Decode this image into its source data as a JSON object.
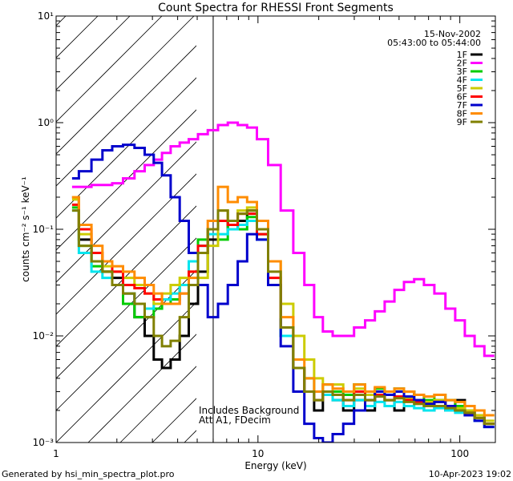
{
  "footer": {
    "left": "Generated by hsi_min_spectra_plot.pro",
    "right": "10-Apr-2023 19:02"
  },
  "chart_data": {
    "type": "line",
    "title": "Count Spectra for RHESSI Front Segments",
    "xlabel": "Energy (keV)",
    "ylabel": "counts cm⁻² s⁻¹ keV⁻¹",
    "x_scale": "log",
    "y_scale": "log",
    "xlim": [
      1,
      150
    ],
    "ylim": [
      0.001,
      10
    ],
    "x_ticks": [
      1,
      10,
      100
    ],
    "x_tick_labels": [
      "1",
      "10",
      "100"
    ],
    "y_ticks": [
      0.001,
      0.01,
      0.1,
      1,
      10
    ],
    "y_tick_labels": [
      "10⁻³",
      "10⁻²",
      "10⁻¹",
      "10⁰",
      "10¹"
    ],
    "date": "15-Nov-2002",
    "time_range": "05:43:00 to 05:44:00",
    "hatched_region_keV": [
      1,
      6
    ],
    "annotations": [
      "Includes Background",
      "Att A1, FDecim"
    ],
    "legend_position": "top-right",
    "series": [
      {
        "name": "1F",
        "color": "#000000",
        "x": [
          1.2,
          1.4,
          1.6,
          1.8,
          2.0,
          2.3,
          2.6,
          2.9,
          3.2,
          3.5,
          3.9,
          4.3,
          4.8,
          5.3,
          6.0,
          6.7,
          7.5,
          8.4,
          9.3,
          10.5,
          12,
          14,
          16,
          18,
          20,
          22,
          25,
          28,
          32,
          36,
          40,
          45,
          50,
          56,
          63,
          70,
          80,
          90,
          100,
          112,
          125,
          140
        ],
        "y": [
          0.2,
          0.08,
          0.05,
          0.04,
          0.035,
          0.025,
          0.015,
          0.01,
          0.006,
          0.005,
          0.006,
          0.01,
          0.02,
          0.04,
          0.08,
          0.12,
          0.1,
          0.12,
          0.15,
          0.1,
          0.03,
          0.01,
          0.005,
          0.003,
          0.002,
          0.003,
          0.0025,
          0.002,
          0.0025,
          0.002,
          0.003,
          0.0025,
          0.002,
          0.003,
          0.0025,
          0.002,
          0.0025,
          0.002,
          0.0025,
          0.002,
          0.0018,
          0.0015
        ]
      },
      {
        "name": "2F",
        "color": "#ff00ff",
        "x": [
          1.2,
          1.4,
          1.6,
          1.8,
          2.0,
          2.3,
          2.6,
          2.9,
          3.2,
          3.5,
          3.9,
          4.3,
          4.8,
          5.3,
          6.0,
          6.7,
          7.5,
          8.4,
          9.3,
          10.5,
          12,
          14,
          16,
          18,
          20,
          22,
          25,
          28,
          32,
          36,
          40,
          45,
          50,
          56,
          63,
          70,
          80,
          90,
          100,
          112,
          125,
          140
        ],
        "y": [
          0.25,
          0.25,
          0.26,
          0.26,
          0.27,
          0.3,
          0.35,
          0.4,
          0.45,
          0.52,
          0.6,
          0.65,
          0.7,
          0.78,
          0.85,
          0.95,
          1.0,
          0.95,
          0.9,
          0.7,
          0.4,
          0.15,
          0.06,
          0.03,
          0.015,
          0.011,
          0.01,
          0.01,
          0.012,
          0.014,
          0.017,
          0.021,
          0.027,
          0.032,
          0.034,
          0.03,
          0.025,
          0.018,
          0.014,
          0.01,
          0.008,
          0.0065
        ]
      },
      {
        "name": "3F",
        "color": "#00cc00",
        "x": [
          1.2,
          1.4,
          1.6,
          1.8,
          2.0,
          2.3,
          2.6,
          2.9,
          3.2,
          3.5,
          3.9,
          4.3,
          4.8,
          5.3,
          6.0,
          6.7,
          7.5,
          8.4,
          9.3,
          10.5,
          12,
          14,
          16,
          18,
          20,
          22,
          25,
          28,
          32,
          36,
          40,
          45,
          50,
          56,
          63,
          70,
          80,
          90,
          100,
          112,
          125,
          140
        ],
        "y": [
          0.16,
          0.07,
          0.045,
          0.04,
          0.03,
          0.02,
          0.015,
          0.015,
          0.018,
          0.02,
          0.022,
          0.03,
          0.05,
          0.08,
          0.1,
          0.08,
          0.11,
          0.1,
          0.13,
          0.09,
          0.03,
          0.01,
          0.005,
          0.004,
          0.003,
          0.0035,
          0.003,
          0.0028,
          0.0035,
          0.003,
          0.0032,
          0.0028,
          0.0032,
          0.003,
          0.0028,
          0.0025,
          0.0028,
          0.0025,
          0.0022,
          0.002,
          0.0018,
          0.0015
        ]
      },
      {
        "name": "4F",
        "color": "#00e5ee",
        "x": [
          1.2,
          1.4,
          1.6,
          1.8,
          2.0,
          2.3,
          2.6,
          2.9,
          3.2,
          3.5,
          3.9,
          4.3,
          4.8,
          5.3,
          6.0,
          6.7,
          7.5,
          8.4,
          9.3,
          10.5,
          12,
          14,
          16,
          18,
          20,
          22,
          25,
          28,
          32,
          36,
          40,
          45,
          50,
          56,
          63,
          70,
          80,
          90,
          100,
          112,
          125,
          140
        ],
        "y": [
          0.15,
          0.06,
          0.04,
          0.035,
          0.03,
          0.025,
          0.02,
          0.018,
          0.02,
          0.022,
          0.025,
          0.03,
          0.05,
          0.07,
          0.09,
          0.09,
          0.1,
          0.11,
          0.12,
          0.08,
          0.03,
          0.01,
          0.005,
          0.003,
          0.0025,
          0.0028,
          0.0025,
          0.0022,
          0.0025,
          0.0022,
          0.0024,
          0.0022,
          0.0024,
          0.0022,
          0.0021,
          0.002,
          0.0021,
          0.002,
          0.0019,
          0.0018,
          0.0016,
          0.0014
        ]
      },
      {
        "name": "5F",
        "color": "#cccc00",
        "x": [
          1.2,
          1.4,
          1.6,
          1.8,
          2.0,
          2.3,
          2.6,
          2.9,
          3.2,
          3.5,
          3.9,
          4.3,
          4.8,
          5.3,
          6.0,
          6.7,
          7.5,
          8.4,
          9.3,
          10.5,
          12,
          14,
          16,
          18,
          20,
          22,
          25,
          28,
          32,
          36,
          40,
          45,
          50,
          56,
          63,
          70,
          80,
          90,
          100,
          112,
          125,
          140
        ],
        "y": [
          0.19,
          0.09,
          0.06,
          0.045,
          0.04,
          0.035,
          0.03,
          0.025,
          0.02,
          0.025,
          0.03,
          0.035,
          0.04,
          0.035,
          0.07,
          0.15,
          0.12,
          0.15,
          0.16,
          0.12,
          0.05,
          0.02,
          0.01,
          0.006,
          0.004,
          0.003,
          0.0035,
          0.003,
          0.0032,
          0.0028,
          0.003,
          0.0028,
          0.003,
          0.0026,
          0.0025,
          0.0024,
          0.0025,
          0.0022,
          0.0021,
          0.002,
          0.0018,
          0.0016
        ]
      },
      {
        "name": "6F",
        "color": "#ff0000",
        "x": [
          1.2,
          1.4,
          1.6,
          1.8,
          2.0,
          2.3,
          2.6,
          2.9,
          3.2,
          3.5,
          3.9,
          4.3,
          4.8,
          5.3,
          6.0,
          6.7,
          7.5,
          8.4,
          9.3,
          10.5,
          12,
          14,
          16,
          18,
          20,
          22,
          25,
          28,
          32,
          36,
          40,
          45,
          50,
          56,
          63,
          70,
          80,
          90,
          100,
          112,
          125,
          140
        ],
        "y": [
          0.17,
          0.1,
          0.06,
          0.05,
          0.04,
          0.03,
          0.028,
          0.025,
          0.022,
          0.02,
          0.02,
          0.025,
          0.04,
          0.07,
          0.1,
          0.12,
          0.11,
          0.14,
          0.14,
          0.09,
          0.035,
          0.012,
          0.005,
          0.003,
          0.0025,
          0.003,
          0.0028,
          0.0025,
          0.003,
          0.0025,
          0.0028,
          0.0025,
          0.0027,
          0.0025,
          0.0024,
          0.0023,
          0.0024,
          0.0022,
          0.002,
          0.0019,
          0.0017,
          0.0015
        ]
      },
      {
        "name": "7F",
        "color": "#0000cc",
        "x": [
          1.2,
          1.4,
          1.6,
          1.8,
          2.0,
          2.3,
          2.6,
          2.9,
          3.2,
          3.5,
          3.9,
          4.3,
          4.8,
          5.3,
          6.0,
          6.7,
          7.5,
          8.4,
          9.3,
          10.5,
          12,
          14,
          16,
          18,
          20,
          22,
          25,
          28,
          32,
          36,
          40,
          45,
          50,
          56,
          63,
          70,
          80,
          90,
          100,
          112,
          125,
          140
        ],
        "y": [
          0.3,
          0.35,
          0.45,
          0.55,
          0.6,
          0.62,
          0.58,
          0.5,
          0.42,
          0.32,
          0.2,
          0.12,
          0.06,
          0.03,
          0.015,
          0.02,
          0.03,
          0.05,
          0.09,
          0.08,
          0.03,
          0.008,
          0.003,
          0.0015,
          0.0011,
          0.001,
          0.0012,
          0.0015,
          0.002,
          0.0025,
          0.003,
          0.0028,
          0.003,
          0.0027,
          0.0025,
          0.0023,
          0.0024,
          0.0022,
          0.002,
          0.0018,
          0.0016,
          0.0014
        ]
      },
      {
        "name": "8F",
        "color": "#ff8c00",
        "x": [
          1.2,
          1.4,
          1.6,
          1.8,
          2.0,
          2.3,
          2.6,
          2.9,
          3.2,
          3.5,
          3.9,
          4.3,
          4.8,
          5.3,
          6.0,
          6.7,
          7.5,
          8.4,
          9.3,
          10.5,
          12,
          14,
          16,
          18,
          20,
          22,
          25,
          28,
          32,
          36,
          40,
          45,
          50,
          56,
          63,
          70,
          80,
          90,
          100,
          112,
          125,
          140
        ],
        "y": [
          0.2,
          0.11,
          0.07,
          0.05,
          0.045,
          0.04,
          0.035,
          0.03,
          0.025,
          0.02,
          0.02,
          0.025,
          0.035,
          0.06,
          0.12,
          0.25,
          0.18,
          0.2,
          0.18,
          0.12,
          0.05,
          0.015,
          0.006,
          0.004,
          0.003,
          0.0035,
          0.0032,
          0.003,
          0.0035,
          0.003,
          0.0033,
          0.003,
          0.0032,
          0.003,
          0.0028,
          0.0027,
          0.0028,
          0.0025,
          0.0024,
          0.0022,
          0.002,
          0.0018
        ]
      },
      {
        "name": "9F",
        "color": "#808000",
        "x": [
          1.2,
          1.4,
          1.6,
          1.8,
          2.0,
          2.3,
          2.6,
          2.9,
          3.2,
          3.5,
          3.9,
          4.3,
          4.8,
          5.3,
          6.0,
          6.7,
          7.5,
          8.4,
          9.3,
          10.5,
          12,
          14,
          16,
          18,
          20,
          22,
          25,
          28,
          32,
          36,
          40,
          45,
          50,
          56,
          63,
          70,
          80,
          90,
          100,
          112,
          125,
          140
        ],
        "y": [
          0.15,
          0.07,
          0.05,
          0.04,
          0.03,
          0.025,
          0.02,
          0.015,
          0.01,
          0.008,
          0.009,
          0.015,
          0.03,
          0.06,
          0.1,
          0.15,
          0.12,
          0.14,
          0.15,
          0.1,
          0.04,
          0.012,
          0.005,
          0.003,
          0.0025,
          0.003,
          0.0028,
          0.0025,
          0.0028,
          0.0025,
          0.0027,
          0.0025,
          0.0026,
          0.0024,
          0.0023,
          0.0022,
          0.0022,
          0.0021,
          0.002,
          0.0019,
          0.0017,
          0.0015
        ]
      }
    ]
  }
}
